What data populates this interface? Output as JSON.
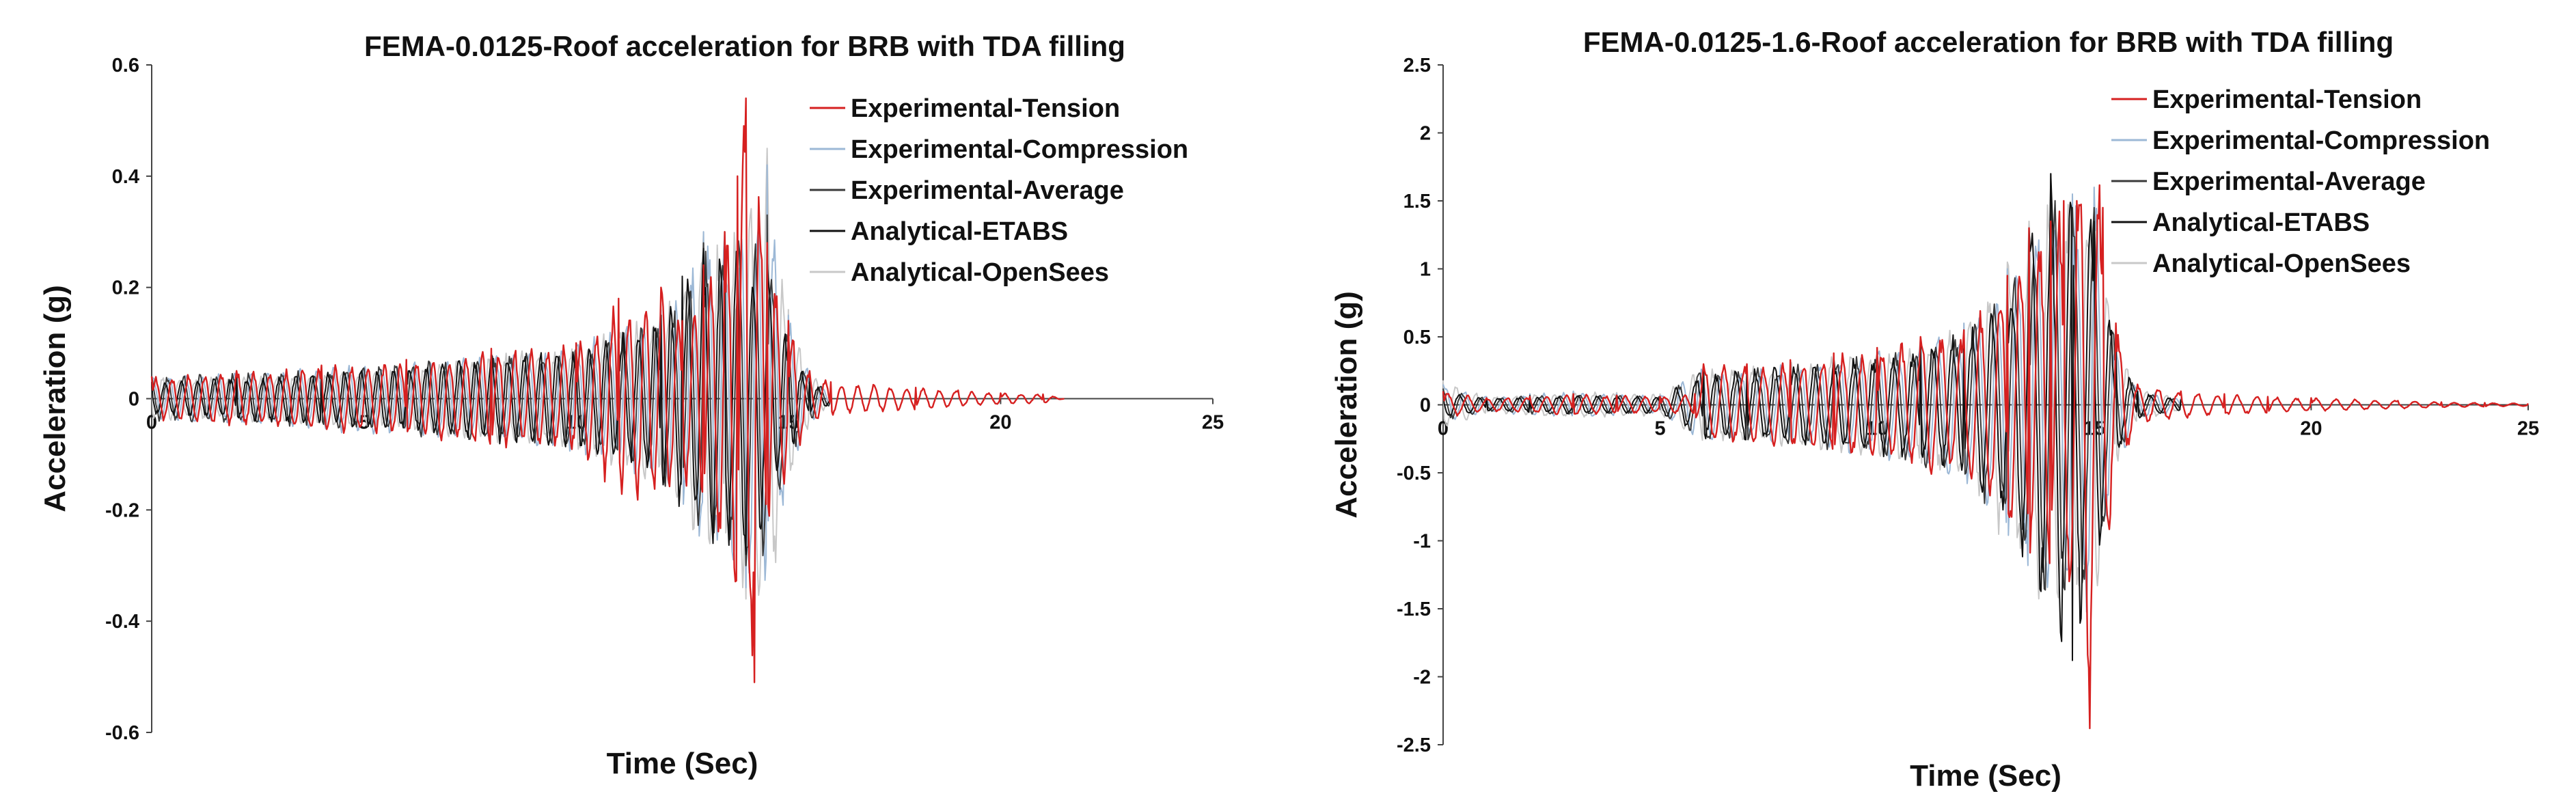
{
  "chart_data": [
    {
      "type": "line",
      "title": "FEMA-0.0125-Roof acceleration for BRB with TDA filling",
      "xlabel": "Time (Sec)",
      "ylabel": "Acceleration (g)",
      "xlim": [
        0,
        25
      ],
      "ylim": [
        -0.6,
        0.6
      ],
      "xticks": [
        "0",
        "5",
        "10",
        "15",
        "20",
        "25"
      ],
      "yticks": [
        "-0.6",
        "-0.4",
        "-0.2",
        "0",
        "0.2",
        "0.4",
        "0.6"
      ],
      "grid": false,
      "legend_position": "top-right",
      "series": [
        {
          "name": "Experimental-Tension",
          "color": "#d62020",
          "x": [
            0,
            2,
            4,
            6,
            8,
            10,
            11,
            12,
            12.5,
            13,
            13.5,
            13.8,
            14,
            14.2,
            14.5,
            15,
            15.5,
            16,
            17,
            18,
            19,
            20,
            21,
            21.5
          ],
          "y": [
            0.04,
            0.05,
            0.06,
            0.07,
            0.09,
            0.1,
            0.18,
            0.2,
            0.14,
            0.24,
            0.3,
            0.4,
            0.54,
            -0.51,
            0.28,
            0.14,
            0.05,
            0.03,
            0.025,
            0.02,
            0.015,
            0.01,
            0.008,
            0
          ]
        },
        {
          "name": "Experimental-Compression",
          "color": "#9cb8d6",
          "x": [
            0,
            2,
            4,
            6,
            8,
            10,
            11,
            12,
            12.5,
            13,
            13.5,
            14,
            14.5,
            15,
            15.5,
            16
          ],
          "y": [
            0.04,
            0.05,
            0.06,
            0.07,
            0.08,
            0.1,
            0.13,
            0.16,
            0.2,
            0.3,
            0.3,
            -0.34,
            0.42,
            0.15,
            0.05,
            0.01
          ]
        },
        {
          "name": "Experimental-Average",
          "color": "#3a3a3a",
          "x": [
            0,
            2,
            4,
            6,
            8,
            10,
            11,
            12,
            12.5,
            13,
            13.5,
            14,
            14.5,
            15,
            15.5,
            16
          ],
          "y": [
            0.04,
            0.05,
            0.05,
            0.07,
            0.08,
            0.09,
            0.12,
            0.15,
            0.2,
            0.28,
            0.28,
            -0.3,
            0.33,
            0.12,
            0.04,
            0.01
          ]
        },
        {
          "name": "Analytical-ETABS",
          "color": "#111111",
          "x": [
            0,
            2,
            4,
            6,
            8,
            10,
            11,
            12,
            12.5,
            13,
            13.5,
            14,
            14.5,
            15,
            15.5,
            16
          ],
          "y": [
            0.03,
            0.04,
            0.05,
            0.06,
            0.08,
            0.09,
            0.12,
            0.15,
            0.22,
            0.27,
            0.3,
            -0.28,
            0.25,
            0.1,
            0.03,
            0.01
          ]
        },
        {
          "name": "Analytical-OpenSees",
          "color": "#c8c8c8",
          "x": [
            0,
            2,
            4,
            6,
            8,
            10,
            11,
            12,
            12.5,
            13,
            13.5,
            14,
            14.5,
            15,
            15.5,
            16
          ],
          "y": [
            0.04,
            0.04,
            0.05,
            0.06,
            0.08,
            0.1,
            0.13,
            0.17,
            0.22,
            0.3,
            0.28,
            -0.36,
            0.45,
            0.16,
            0.05,
            0.01
          ]
        }
      ]
    },
    {
      "type": "line",
      "title": "FEMA-0.0125-1.6-Roof acceleration for BRB with TDA filling",
      "xlabel": "Time (Sec)",
      "ylabel": "Acceleration (g)",
      "xlim": [
        0,
        25
      ],
      "ylim": [
        -2.5,
        2.5
      ],
      "xticks": [
        "0",
        "5",
        "10",
        "15",
        "20",
        "25"
      ],
      "yticks": [
        "-2.5",
        "-2",
        "-1.5",
        "-1",
        "-0.5",
        "0",
        "0.5",
        "1",
        "1.5",
        "2",
        "2.5"
      ],
      "grid": false,
      "legend_position": "top-right",
      "series": [
        {
          "name": "Experimental-Tension",
          "color": "#d62020",
          "x": [
            0,
            1,
            2,
            3,
            4,
            5,
            5.8,
            6,
            7,
            8,
            9,
            10,
            11,
            12,
            13,
            13.5,
            14,
            14.3,
            14.6,
            14.9,
            15.2,
            15.5,
            16,
            17,
            18,
            19,
            20,
            21,
            22,
            23,
            24,
            25
          ],
          "y": [
            0.1,
            0.05,
            0.06,
            0.08,
            0.07,
            0.06,
            0.08,
            0.3,
            0.3,
            0.33,
            0.38,
            0.42,
            0.5,
            0.55,
            0.95,
            1.3,
            1.35,
            1.5,
            1.5,
            -2.38,
            1.45,
            0.6,
            0.15,
            0.1,
            0.08,
            0.06,
            0.05,
            0.04,
            0.03,
            0.02,
            0.015,
            0.01
          ]
        },
        {
          "name": "Experimental-Compression",
          "color": "#9cb8d6",
          "x": [
            0,
            1,
            2,
            3,
            4,
            5,
            6,
            7,
            8,
            9,
            10,
            11,
            12,
            13,
            13.5,
            14,
            14.5,
            15,
            15.5,
            16,
            17
          ],
          "y": [
            0.15,
            0.06,
            0.08,
            0.1,
            0.08,
            0.07,
            0.28,
            0.28,
            0.3,
            0.35,
            0.4,
            0.48,
            0.6,
            1.0,
            1.3,
            1.6,
            1.55,
            1.6,
            0.5,
            0.12,
            0.05
          ]
        },
        {
          "name": "Experimental-Average",
          "color": "#3a3a3a",
          "x": [
            0,
            1,
            2,
            3,
            4,
            5,
            6,
            7,
            8,
            9,
            10,
            11,
            12,
            13,
            13.5,
            14,
            14.5,
            15,
            15.5,
            16,
            17
          ],
          "y": [
            0.12,
            0.05,
            0.07,
            0.08,
            0.07,
            0.06,
            0.28,
            0.28,
            0.3,
            0.35,
            0.38,
            0.46,
            0.55,
            0.95,
            1.25,
            1.7,
            1.45,
            1.45,
            0.45,
            0.1,
            0.04
          ]
        },
        {
          "name": "Analytical-ETABS",
          "color": "#111111",
          "x": [
            0,
            1,
            2,
            3,
            4,
            5,
            6,
            7,
            8,
            9,
            10,
            11,
            12,
            13,
            13.5,
            14,
            14.5,
            15,
            15.5,
            16,
            17
          ],
          "y": [
            0.1,
            0.05,
            0.06,
            0.07,
            0.07,
            0.06,
            0.25,
            0.27,
            0.3,
            0.33,
            0.37,
            0.45,
            0.55,
            0.9,
            1.3,
            1.7,
            -1.88,
            1.35,
            0.4,
            0.1,
            0.04
          ]
        },
        {
          "name": "Analytical-OpenSees",
          "color": "#c8c8c8",
          "x": [
            0,
            1,
            2,
            3,
            4,
            5,
            6,
            7,
            8,
            9,
            10,
            11,
            12,
            13,
            13.5,
            14,
            14.5,
            15,
            15.5,
            16,
            17
          ],
          "y": [
            0.18,
            0.06,
            0.08,
            0.1,
            0.09,
            0.08,
            0.28,
            0.3,
            0.32,
            0.36,
            0.4,
            0.5,
            0.6,
            1.05,
            1.35,
            1.65,
            1.55,
            1.6,
            0.5,
            0.12,
            0.05
          ]
        }
      ]
    }
  ]
}
